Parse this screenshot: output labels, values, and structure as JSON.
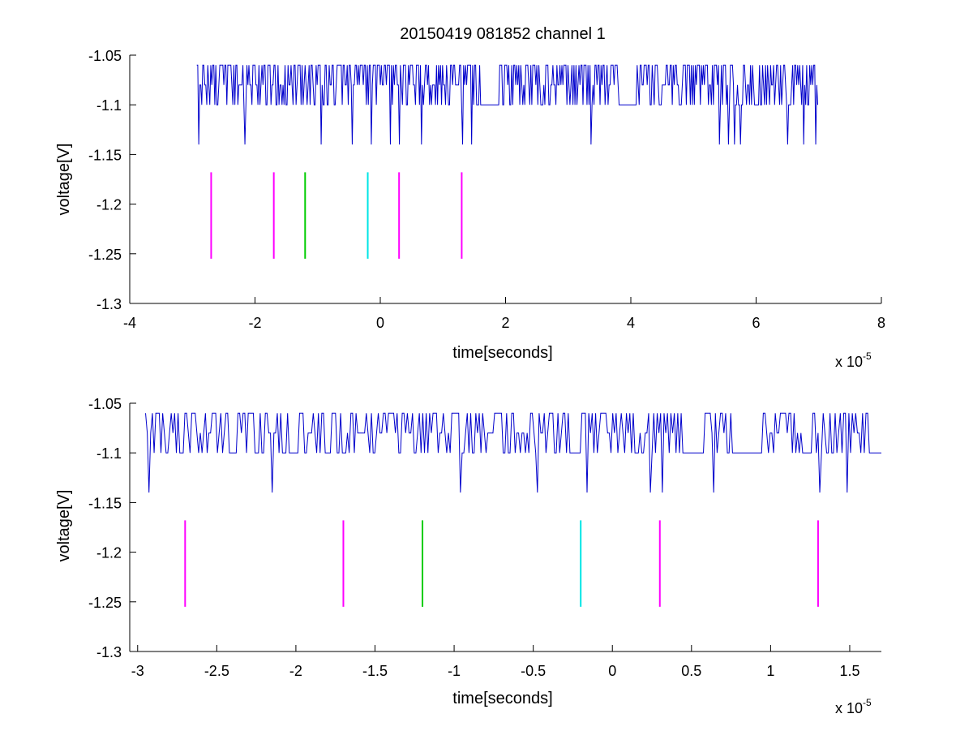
{
  "chart_data": [
    {
      "type": "line",
      "title": "20150419 081852 channel 1",
      "xlabel": "time[seconds]",
      "ylabel": "voltage[V]",
      "xlim": [
        -4,
        8
      ],
      "ylim": [
        -1.3,
        -1.05
      ],
      "x_multiplier": "x 10",
      "x_multiplier_exponent": "-5",
      "x_ticks": [
        -4,
        -2,
        0,
        2,
        4,
        6,
        8
      ],
      "x_tick_labels": [
        "-4",
        "-2",
        "0",
        "2",
        "4",
        "6",
        "8"
      ],
      "y_ticks": [
        -1.3,
        -1.25,
        -1.2,
        -1.15,
        -1.1,
        -1.05
      ],
      "y_tick_labels": [
        "-1.3",
        "-1.25",
        "-1.2",
        "-1.15",
        "-1.1",
        "-1.05"
      ],
      "grid": false,
      "signal": {
        "color": "#0000cc",
        "x_range": [
          -2.93,
          7.0
        ],
        "levels": [
          -1.06,
          -1.08,
          -1.1
        ],
        "spike_level": -1.14,
        "spike_times": [
          -2.9,
          -2.17,
          -0.95,
          -0.45,
          -0.15,
          0.15,
          0.3,
          0.65,
          1.3,
          1.45,
          1.85,
          3.35,
          5.4,
          5.55,
          5.65,
          5.75,
          6.5,
          6.75,
          6.95
        ]
      },
      "markers": [
        {
          "x": -2.7,
          "y_range": [
            -1.255,
            -1.168
          ],
          "color": "#ff00ff"
        },
        {
          "x": -1.7,
          "y_range": [
            -1.255,
            -1.168
          ],
          "color": "#ff00ff"
        },
        {
          "x": -1.2,
          "y_range": [
            -1.255,
            -1.168
          ],
          "color": "#00cc00"
        },
        {
          "x": -0.2,
          "y_range": [
            -1.255,
            -1.168
          ],
          "color": "#00e5e5"
        },
        {
          "x": 0.3,
          "y_range": [
            -1.255,
            -1.168
          ],
          "color": "#ff00ff"
        },
        {
          "x": 1.3,
          "y_range": [
            -1.255,
            -1.168
          ],
          "color": "#ff00ff"
        }
      ]
    },
    {
      "type": "line",
      "title": "",
      "xlabel": "time[seconds]",
      "ylabel": "voltage[V]",
      "xlim": [
        -3.05,
        1.7
      ],
      "ylim": [
        -1.3,
        -1.05
      ],
      "x_multiplier": "x 10",
      "x_multiplier_exponent": "-5",
      "x_ticks": [
        -3,
        -2.5,
        -2,
        -1.5,
        -1,
        -0.5,
        0,
        0.5,
        1,
        1.5
      ],
      "x_tick_labels": [
        "-3",
        "-2.5",
        "-2",
        "-1.5",
        "-1",
        "-0.5",
        "0",
        "0.5",
        "1",
        "1.5"
      ],
      "y_ticks": [
        -1.3,
        -1.25,
        -1.2,
        -1.15,
        -1.1,
        -1.05
      ],
      "y_tick_labels": [
        "-1.3",
        "-1.25",
        "-1.2",
        "-1.15",
        "-1.1",
        "-1.05"
      ],
      "grid": false,
      "signal": {
        "color": "#0000cc",
        "x_range": [
          -2.95,
          1.7
        ],
        "levels": [
          -1.06,
          -1.08,
          -1.1
        ],
        "spike_level": -1.14,
        "spike_times": [
          -2.93,
          -2.16,
          -0.97,
          -0.48,
          -0.17,
          0.23,
          0.31,
          0.64,
          1.22,
          1.3,
          1.48
        ]
      },
      "markers": [
        {
          "x": -2.7,
          "y_range": [
            -1.255,
            -1.168
          ],
          "color": "#ff00ff"
        },
        {
          "x": -1.7,
          "y_range": [
            -1.255,
            -1.168
          ],
          "color": "#ff00ff"
        },
        {
          "x": -1.2,
          "y_range": [
            -1.255,
            -1.168
          ],
          "color": "#00cc00"
        },
        {
          "x": -0.2,
          "y_range": [
            -1.255,
            -1.168
          ],
          "color": "#00e5e5"
        },
        {
          "x": 0.3,
          "y_range": [
            -1.255,
            -1.168
          ],
          "color": "#ff00ff"
        },
        {
          "x": 1.3,
          "y_range": [
            -1.255,
            -1.168
          ],
          "color": "#ff00ff"
        }
      ]
    }
  ]
}
